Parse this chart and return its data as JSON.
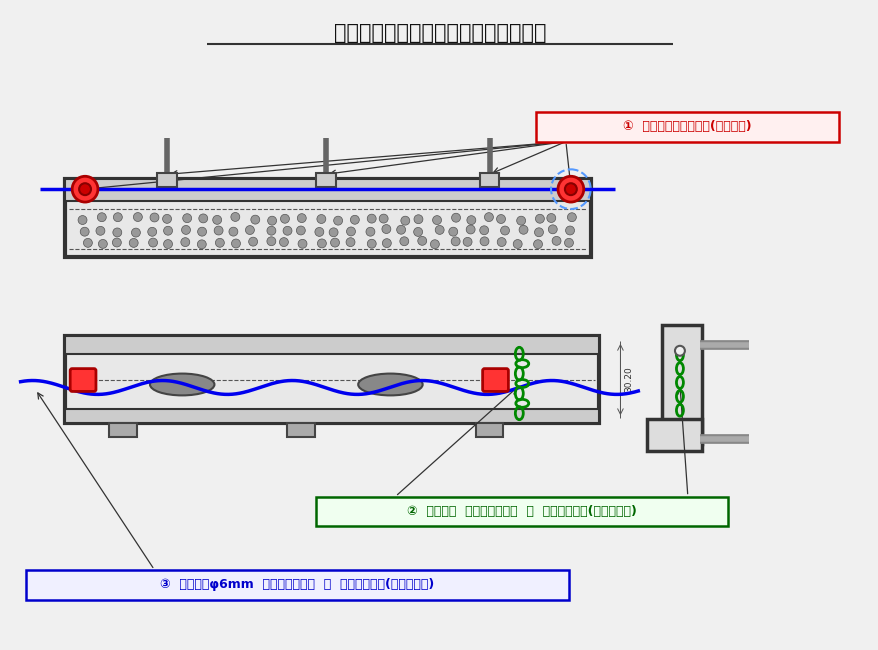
{
  "title": "跳ね上がり防止　及び　盗難防止構造",
  "label1": "①  跳ね上がり防止構造(基本構造)",
  "label2": "②  チェーン  跳ね上がり防止  兼  盗難防止構造(オプション)",
  "label3": "③  ワイヤーφ6mm  跳ね上がり防止  兼  盗難防止構造(オプション)",
  "bg_color": "#f0f0f0",
  "label1_color": "#cc0000",
  "label2_color": "#006600",
  "label3_color": "#0000cc",
  "wire_color": "#0000ee",
  "chain_color": "#008800",
  "body_color": "#333333"
}
